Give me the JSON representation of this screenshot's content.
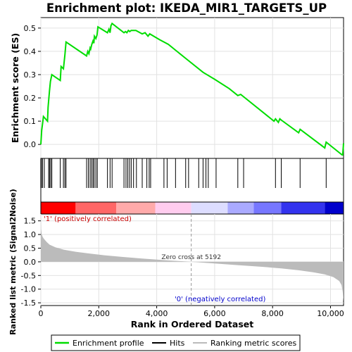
{
  "chart_data": {
    "type": "line",
    "title": "Enrichment plot: IKEDA_MIR1_TARGETS_UP",
    "top_panel": {
      "ylabel": "Enrichment score (ES)",
      "ylim": [
        -0.06,
        0.545
      ],
      "yticks": [
        0.0,
        0.1,
        0.2,
        0.3,
        0.4,
        0.5
      ],
      "ytick_labels": [
        "0.0",
        "0.1",
        "0.2",
        "0.3",
        "0.4",
        "0.5"
      ],
      "grid": true,
      "series": [
        {
          "name": "Enrichment profile",
          "color": "#00dd00",
          "x": [
            0,
            30,
            60,
            90,
            230,
            250,
            300,
            330,
            380,
            670,
            700,
            780,
            830,
            870,
            1580,
            1620,
            1660,
            1700,
            1720,
            1760,
            1800,
            1830,
            1850,
            1900,
            1940,
            1970,
            2300,
            2350,
            2390,
            2420,
            2460,
            2870,
            2920,
            2970,
            3020,
            3070,
            3120,
            3200,
            3280,
            3500,
            3600,
            3700,
            3760,
            4100,
            4400,
            5000,
            5600,
            6000,
            6500,
            6800,
            6900,
            7000,
            8050,
            8100,
            8200,
            8250,
            8300,
            8900,
            8950,
            9800,
            9850,
            10400,
            10420,
            10450
          ],
          "y": [
            0.0,
            0.06,
            0.09,
            0.12,
            0.1,
            0.16,
            0.23,
            0.27,
            0.3,
            0.275,
            0.335,
            0.325,
            0.385,
            0.44,
            0.38,
            0.4,
            0.39,
            0.415,
            0.41,
            0.43,
            0.445,
            0.435,
            0.465,
            0.455,
            0.47,
            0.505,
            0.48,
            0.495,
            0.48,
            0.51,
            0.52,
            0.48,
            0.485,
            0.48,
            0.49,
            0.485,
            0.49,
            0.49,
            0.49,
            0.475,
            0.48,
            0.465,
            0.475,
            0.45,
            0.43,
            0.37,
            0.31,
            0.28,
            0.24,
            0.21,
            0.215,
            0.205,
            0.1,
            0.11,
            0.095,
            0.11,
            0.105,
            0.05,
            0.065,
            -0.015,
            0.01,
            -0.045,
            -0.045,
            0.005
          ]
        }
      ]
    },
    "hits_panel": {
      "hits": [
        20,
        60,
        120,
        270,
        300,
        340,
        380,
        670,
        780,
        830,
        870,
        1580,
        1640,
        1700,
        1750,
        1800,
        1840,
        1900,
        1950,
        2300,
        2390,
        2460,
        2870,
        2940,
        3000,
        3060,
        3120,
        3200,
        3300,
        3500,
        3660,
        3740,
        3790,
        4250,
        4360,
        4650,
        5000,
        5100,
        5450,
        5600,
        5700,
        5780,
        6050,
        6800,
        7000,
        8100,
        8300,
        8950,
        9850,
        10450
      ],
      "gradient_colors": [
        "#ff0000",
        "#ff6666",
        "#ffaaaa",
        "#ffccee",
        "#ddddff",
        "#aaaaff",
        "#7777ff",
        "#3333ee",
        "#0000cc"
      ],
      "gradient_boundaries": [
        0,
        1200,
        2600,
        3950,
        5192,
        6450,
        7350,
        8300,
        9800,
        10450
      ]
    },
    "bottom_panel": {
      "ylabel": "Ranked list metric (Signal2Noise)",
      "ylim": [
        -1.6,
        1.75
      ],
      "yticks": [
        -1.5,
        -1.0,
        -0.5,
        0.0,
        0.5,
        1.0,
        1.5
      ],
      "ytick_labels": [
        "-1.5",
        "-1.0",
        "-0.5",
        "0.0",
        "0.5",
        "1.0",
        "1.5"
      ],
      "metric_x": [
        0,
        10,
        30,
        60,
        100,
        200,
        300,
        500,
        800,
        1200,
        1700,
        2200,
        2800,
        3500,
        4300,
        5192,
        6000,
        6800,
        7600,
        8300,
        8900,
        9400,
        9800,
        10100,
        10300,
        10380,
        10420,
        10450
      ],
      "metric_y": [
        1.65,
        1.2,
        1.02,
        0.92,
        0.85,
        0.73,
        0.63,
        0.53,
        0.44,
        0.37,
        0.3,
        0.24,
        0.18,
        0.12,
        0.06,
        0.0,
        -0.06,
        -0.12,
        -0.18,
        -0.24,
        -0.31,
        -0.38,
        -0.46,
        -0.56,
        -0.7,
        -0.85,
        -1.1,
        -1.45
      ],
      "fill_color": "#bbbbbb",
      "zero_cross": 5192,
      "zero_cross_label": "Zero cross at 5192",
      "positive_label": "'1' (positively correlated)",
      "negative_label": "'0' (negatively correlated)",
      "positive_color": "#cc0000",
      "negative_color": "#0000cc"
    },
    "xlabel": "Rank in Ordered Dataset",
    "xlim": [
      0,
      10450
    ],
    "xticks": [
      0,
      2000,
      4000,
      6000,
      8000,
      10000
    ],
    "xtick_labels": [
      "0",
      "2,000",
      "4,000",
      "6,000",
      "8,000",
      "10,000"
    ],
    "legend": {
      "placement": "bottom",
      "entries": [
        {
          "label": "Enrichment profile",
          "color": "#00dd00"
        },
        {
          "label": "Hits",
          "color": "#000000"
        },
        {
          "label": "Ranking metric scores",
          "color": "#bbbbbb"
        }
      ]
    }
  }
}
